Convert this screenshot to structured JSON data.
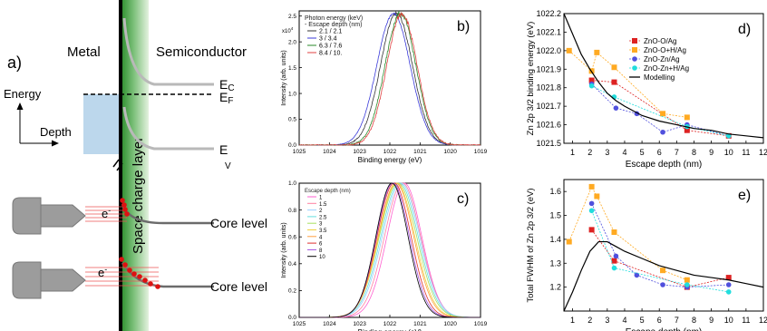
{
  "panel_a": {
    "label": "a)",
    "metal": "Metal",
    "semiconductor": "Semiconductor",
    "energy": "Energy",
    "depth": "Depth",
    "layer": "Space charge layer",
    "ec": "E",
    "ec_sub": "C",
    "ef": "E",
    "ef_sub": "F",
    "ev": "E",
    "ev_sub": "V",
    "electron": "e",
    "electron_sup": "-",
    "core1": "Core level",
    "core2": "Core level",
    "colors": {
      "metal_bar": "#000000",
      "layer_top": "#d9ecd2",
      "layer_mid": "#3e9a3e",
      "depth_box": "#bcd7ec",
      "electron": "#dd1111",
      "analyzer": "#9c9c9c"
    }
  },
  "chart_data": [
    {
      "panel": "b)",
      "type": "line",
      "xlabel": "Binding energy (eV)",
      "ylabel": "Intensity (arb. units)",
      "xlim": [
        1025,
        1019
      ],
      "ylim": [
        0,
        2.6
      ],
      "y_multiplier": "x10",
      "y_multiplier_exp": "4",
      "xticks": [
        1025,
        1024,
        1023,
        1022,
        1021,
        1020,
        1019
      ],
      "yticks": [
        "0.0",
        "0.5",
        "1.0",
        "1.5",
        "2.0",
        "2.5"
      ],
      "legend_title": [
        "Photon energy (keV)",
        "- Escape depth (nm)"
      ],
      "legend_position": "top-left",
      "series": [
        {
          "name": "2.1 / 2.1",
          "color": "#333333",
          "center": 1021.78,
          "fwhm": 1.25,
          "peak": 2.55,
          "noise": 0.9
        },
        {
          "name": "3 / 3.4",
          "color": "#3b3bd9",
          "center": 1021.88,
          "fwhm": 1.3,
          "peak": 2.55,
          "noise": 0.6
        },
        {
          "name": "6.3 / 7.6",
          "color": "#2a8a2a",
          "center": 1021.65,
          "fwhm": 1.2,
          "peak": 2.55,
          "noise": 1.2
        },
        {
          "name": "8.4 / 10.",
          "color": "#e04040",
          "center": 1021.6,
          "fwhm": 1.18,
          "peak": 2.55,
          "noise": 1.3
        }
      ]
    },
    {
      "panel": "c)",
      "type": "line",
      "xlabel": "Binding energy (eV)",
      "ylabel": "Intensity (arb. units)",
      "xlim": [
        1025,
        1019
      ],
      "ylim": [
        0,
        1.0
      ],
      "xticks": [
        1025,
        1024,
        1023,
        1022,
        1021,
        1020,
        1019
      ],
      "yticks": [
        "0.0",
        "0.2",
        "0.4",
        "0.6",
        "0.8",
        "1.0"
      ],
      "legend_title": [
        "Escape depth (nm)"
      ],
      "legend_position": "top-left",
      "series": [
        {
          "name": "1",
          "color": "#ff5fd0",
          "center": 1021.52,
          "fwhm": 1.35
        },
        {
          "name": "1.5",
          "color": "#ff80a0",
          "center": 1021.58,
          "fwhm": 1.4
        },
        {
          "name": "2",
          "color": "#9ad0ff",
          "center": 1021.63,
          "fwhm": 1.45
        },
        {
          "name": "2.5",
          "color": "#66e0e0",
          "center": 1021.68,
          "fwhm": 1.45
        },
        {
          "name": "3",
          "color": "#a8e060",
          "center": 1021.73,
          "fwhm": 1.45
        },
        {
          "name": "3.5",
          "color": "#f0d040",
          "center": 1021.77,
          "fwhm": 1.4
        },
        {
          "name": "4",
          "color": "#ffa040",
          "center": 1021.8,
          "fwhm": 1.38
        },
        {
          "name": "6",
          "color": "#e03030",
          "center": 1021.86,
          "fwhm": 1.32
        },
        {
          "name": "8",
          "color": "#a050e0",
          "center": 1021.9,
          "fwhm": 1.28
        },
        {
          "name": "10",
          "color": "#000000",
          "center": 1021.93,
          "fwhm": 1.25
        }
      ]
    },
    {
      "panel": "d)",
      "type": "scatter",
      "xlabel": "Escape depth (nm)",
      "ylabel": "Zn 2p 3/2 binding energy (eV)",
      "xlim": [
        0.5,
        12
      ],
      "ylim": [
        1021.5,
        1022.2
      ],
      "xticks": [
        1,
        2,
        3,
        4,
        5,
        6,
        7,
        8,
        9,
        10,
        11,
        12
      ],
      "yticks": [
        1021.5,
        1021.6,
        1021.7,
        1021.8,
        1021.9,
        1022.0,
        1022.1,
        1022.2
      ],
      "legend_position": "top-right",
      "series": [
        {
          "name": "ZnO-O/Ag",
          "color": "#dd2222",
          "marker": "square",
          "x": [
            2.1,
            3.4,
            7.6,
            10
          ],
          "y": [
            1021.84,
            1021.83,
            1021.57,
            1021.54
          ]
        },
        {
          "name": "ZnO-O+H/Ag",
          "color": "#ffaa22",
          "marker": "square",
          "x": [
            0.8,
            2.1,
            2.4,
            3.4,
            6.2,
            7.6
          ],
          "y": [
            1022.0,
            1021.89,
            1021.99,
            1021.91,
            1021.66,
            1021.64
          ]
        },
        {
          "name": "ZnO-Zn/Ag",
          "color": "#5050dd",
          "marker": "circle",
          "x": [
            2.1,
            3.5,
            4.7,
            6.2,
            7.6,
            10
          ],
          "y": [
            1021.82,
            1021.69,
            1021.66,
            1021.56,
            1021.6,
            1021.54
          ]
        },
        {
          "name": "ZnO-Zn+H/Ag",
          "color": "#22dddd",
          "marker": "circle",
          "x": [
            2.1,
            3.4,
            7.6,
            10
          ],
          "y": [
            1021.81,
            1021.75,
            1021.59,
            1021.54
          ]
        },
        {
          "name": "Modelling",
          "color": "#000000",
          "marker": "none",
          "x": [
            0.5,
            1,
            1.5,
            2,
            2.5,
            3,
            3.5,
            4,
            5,
            6,
            7,
            8,
            9,
            10,
            11,
            12
          ],
          "y": [
            1022.2,
            1022.09,
            1021.98,
            1021.9,
            1021.83,
            1021.77,
            1021.73,
            1021.7,
            1021.65,
            1021.62,
            1021.6,
            1021.58,
            1021.57,
            1021.55,
            1021.54,
            1021.53
          ]
        }
      ]
    },
    {
      "panel": "e)",
      "type": "scatter",
      "xlabel": "Escape depth (nm)",
      "ylabel": "Total FWHM of Zn 2p 3/2 (eV)",
      "xlim": [
        0.5,
        12
      ],
      "ylim": [
        1.1,
        1.65
      ],
      "xticks": [
        1,
        2,
        3,
        4,
        5,
        6,
        7,
        8,
        9,
        10,
        11,
        12
      ],
      "yticks": [
        1.2,
        1.3,
        1.4,
        1.5,
        1.6
      ],
      "series": [
        {
          "name": "ZnO-O/Ag",
          "color": "#dd2222",
          "marker": "square",
          "x": [
            2.1,
            3.4,
            7.6,
            10
          ],
          "y": [
            1.44,
            1.31,
            1.2,
            1.24
          ]
        },
        {
          "name": "ZnO-O+H/Ag",
          "color": "#ffaa22",
          "marker": "square",
          "x": [
            0.8,
            2.1,
            2.4,
            3.4,
            6.2,
            7.6
          ],
          "y": [
            1.39,
            1.62,
            1.58,
            1.43,
            1.27,
            1.23
          ]
        },
        {
          "name": "ZnO-Zn/Ag",
          "color": "#5050dd",
          "marker": "circle",
          "x": [
            2.1,
            3.5,
            4.7,
            6.2,
            7.6,
            10
          ],
          "y": [
            1.55,
            1.33,
            1.25,
            1.21,
            1.2,
            1.21
          ]
        },
        {
          "name": "ZnO-Zn+H/Ag",
          "color": "#22dddd",
          "marker": "circle",
          "x": [
            2.1,
            3.4,
            7.6,
            10
          ],
          "y": [
            1.52,
            1.28,
            1.21,
            1.18
          ]
        },
        {
          "name": "Modelling",
          "color": "#000000",
          "marker": "none",
          "x": [
            0.5,
            1,
            1.5,
            2,
            2.5,
            3,
            3.5,
            4,
            5,
            6,
            7,
            8,
            9,
            10,
            11,
            12
          ],
          "y": [
            1.1,
            1.18,
            1.27,
            1.35,
            1.39,
            1.39,
            1.37,
            1.35,
            1.32,
            1.29,
            1.27,
            1.25,
            1.24,
            1.23,
            1.215,
            1.2
          ]
        }
      ]
    }
  ]
}
